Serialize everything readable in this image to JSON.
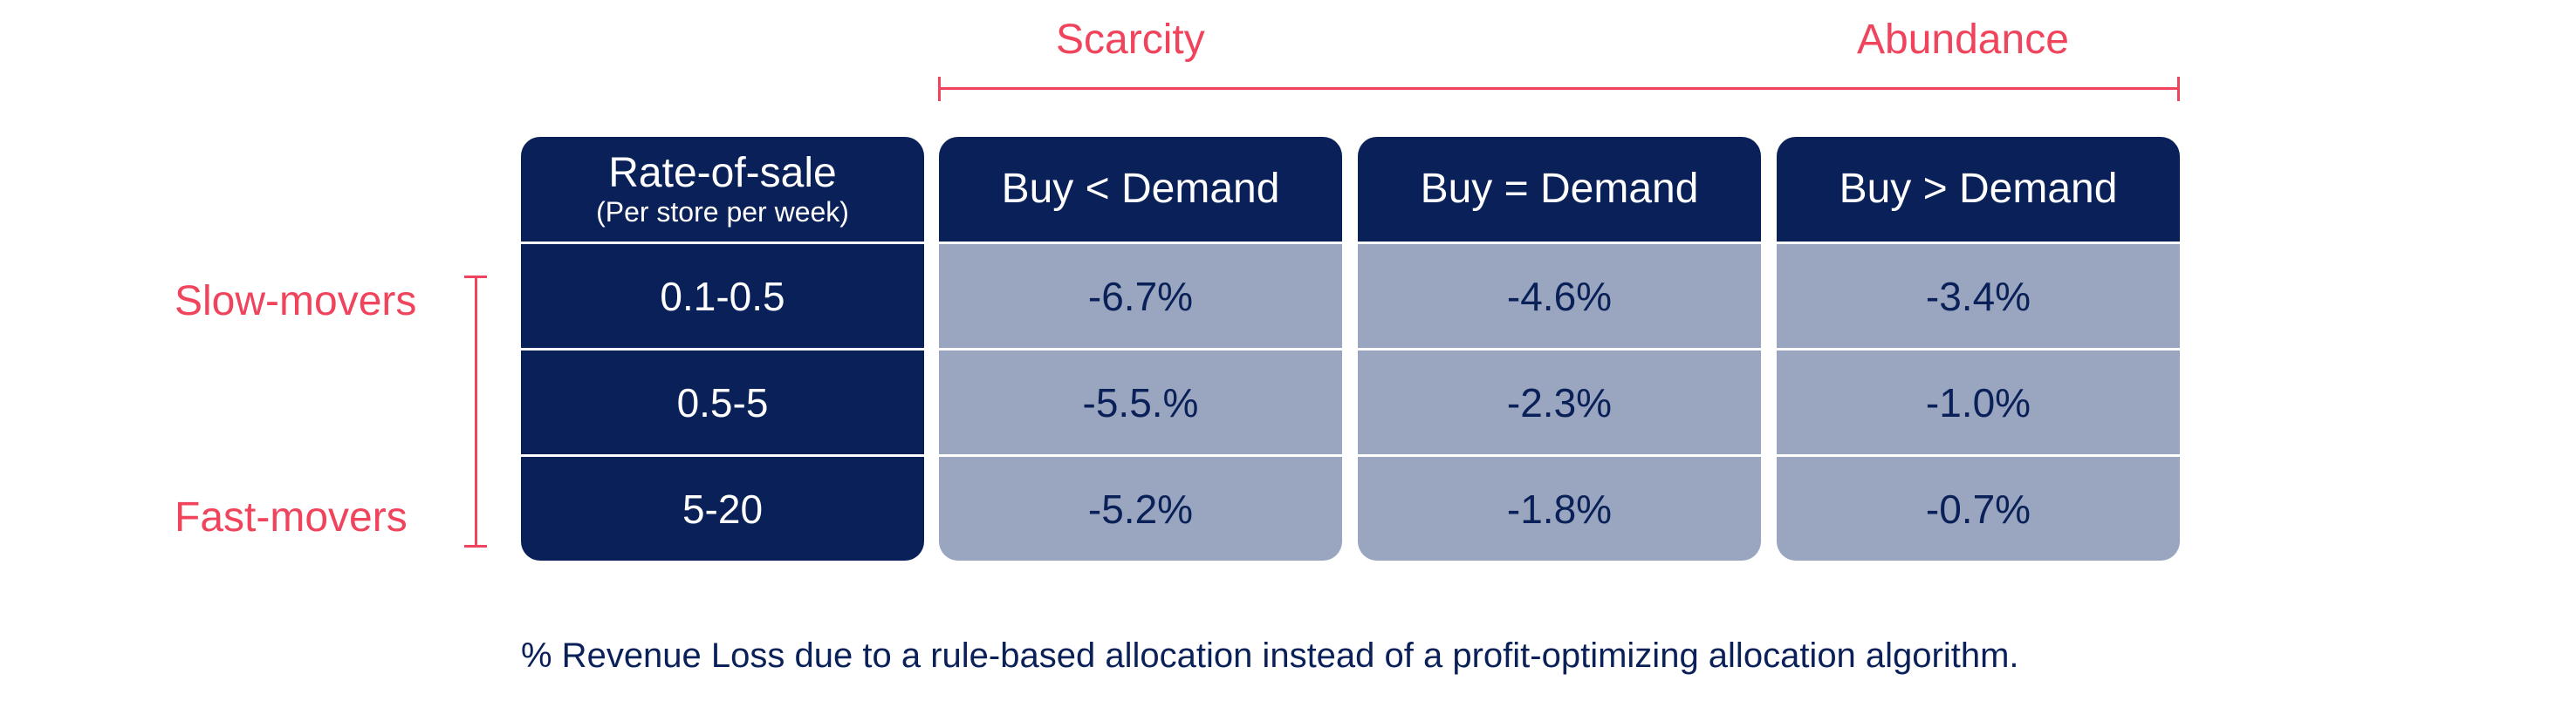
{
  "top_axis": {
    "left_label": "Scarcity",
    "right_label": "Abundance"
  },
  "side_axis": {
    "top_label": "Slow-movers",
    "bottom_label": "Fast-movers"
  },
  "chart_data": {
    "type": "table",
    "row_header": {
      "title": "Rate-of-sale",
      "subtitle": "(Per store per week)"
    },
    "columns": [
      "Buy < Demand",
      "Buy = Demand",
      "Buy > Demand"
    ],
    "rows": [
      "0.1-0.5",
      "0.5-5",
      "5-20"
    ],
    "values": [
      [
        "-6.7%",
        "-4.6%",
        "-3.4%"
      ],
      [
        "-5.5.%",
        "-2.3%",
        "-1.0%"
      ],
      [
        "-5.2%",
        "-1.8%",
        "-0.7%"
      ]
    ]
  },
  "footnote": "% Revenue Loss due to a rule-based allocation instead of a profit-optimizing allocation algorithm.",
  "colors": {
    "navy": "#0a2058",
    "slate": "#9aa6bf",
    "accent_red": "#f0445d"
  }
}
